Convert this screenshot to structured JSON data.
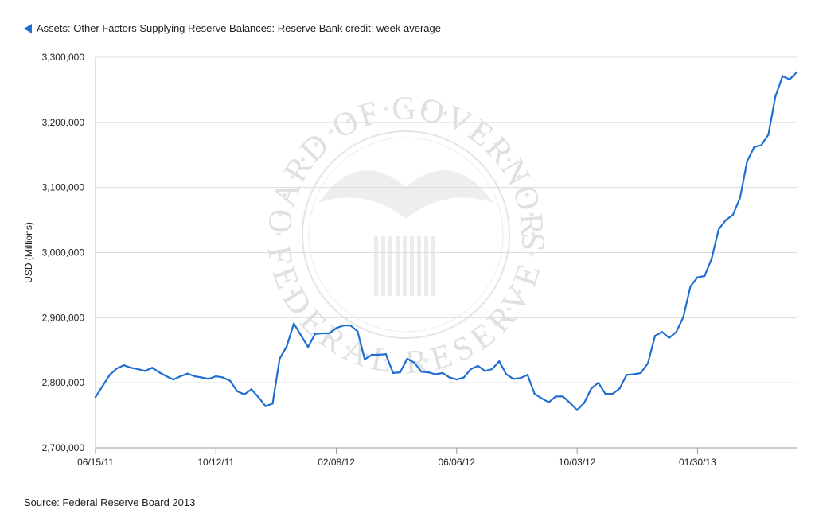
{
  "legend": {
    "label": "Assets: Other Factors Supplying Reserve Balances: Reserve Bank credit: week average",
    "color": "#1f6fd1"
  },
  "source": "Source: Federal Reserve Board 2013",
  "watermark": {
    "top_text": "BOARD OF GOVERNORS",
    "bottom_text": "OF THE FEDERAL RESERVE SYSTEM"
  },
  "chart_data": {
    "type": "line",
    "ylabel": "USD (Millions)",
    "ylim": [
      2700000,
      3300000
    ],
    "y_ticks": [
      2700000,
      2800000,
      2900000,
      3000000,
      3100000,
      3200000,
      3300000
    ],
    "y_tick_labels": [
      "2,700,000",
      "2,800,000",
      "2,900,000",
      "3,000,000",
      "3,100,000",
      "3,200,000",
      "3,300,000"
    ],
    "x_tick_labels": [
      {
        "label": "06/15/11",
        "index": 0
      },
      {
        "label": "10/12/11",
        "index": 17
      },
      {
        "label": "02/08/12",
        "index": 34
      },
      {
        "label": "06/06/12",
        "index": 51
      },
      {
        "label": "10/03/12",
        "index": 68
      },
      {
        "label": "01/30/13",
        "index": 85
      }
    ],
    "grid": true,
    "series": [
      {
        "color": "#1f6fd1",
        "values": [
          2778000,
          2795000,
          2812000,
          2822000,
          2827000,
          2823000,
          2821000,
          2818000,
          2823000,
          2816000,
          2810000,
          2805000,
          2810000,
          2814000,
          2810000,
          2808000,
          2806000,
          2810000,
          2808000,
          2803000,
          2787000,
          2782000,
          2790000,
          2778000,
          2764000,
          2768000,
          2837000,
          2856000,
          2891000,
          2873000,
          2855000,
          2875000,
          2876000,
          2876000,
          2884000,
          2888000,
          2888000,
          2879000,
          2836000,
          2843000,
          2843000,
          2844000,
          2815000,
          2816000,
          2837000,
          2831000,
          2817000,
          2816000,
          2813000,
          2815000,
          2808000,
          2805000,
          2808000,
          2821000,
          2826000,
          2818000,
          2821000,
          2833000,
          2813000,
          2806000,
          2807000,
          2812000,
          2783000,
          2776000,
          2770000,
          2779000,
          2779000,
          2769000,
          2758000,
          2769000,
          2791000,
          2800000,
          2783000,
          2783000,
          2791000,
          2812000,
          2813000,
          2815000,
          2830000,
          2872000,
          2878000,
          2869000,
          2878000,
          2901000,
          2948000,
          2962000,
          2964000,
          2991000,
          3036000,
          3050000,
          3058000,
          3084000,
          3140000,
          3162000,
          3165000,
          3181000,
          3240000,
          3271000,
          3266000,
          3277000
        ]
      }
    ]
  }
}
